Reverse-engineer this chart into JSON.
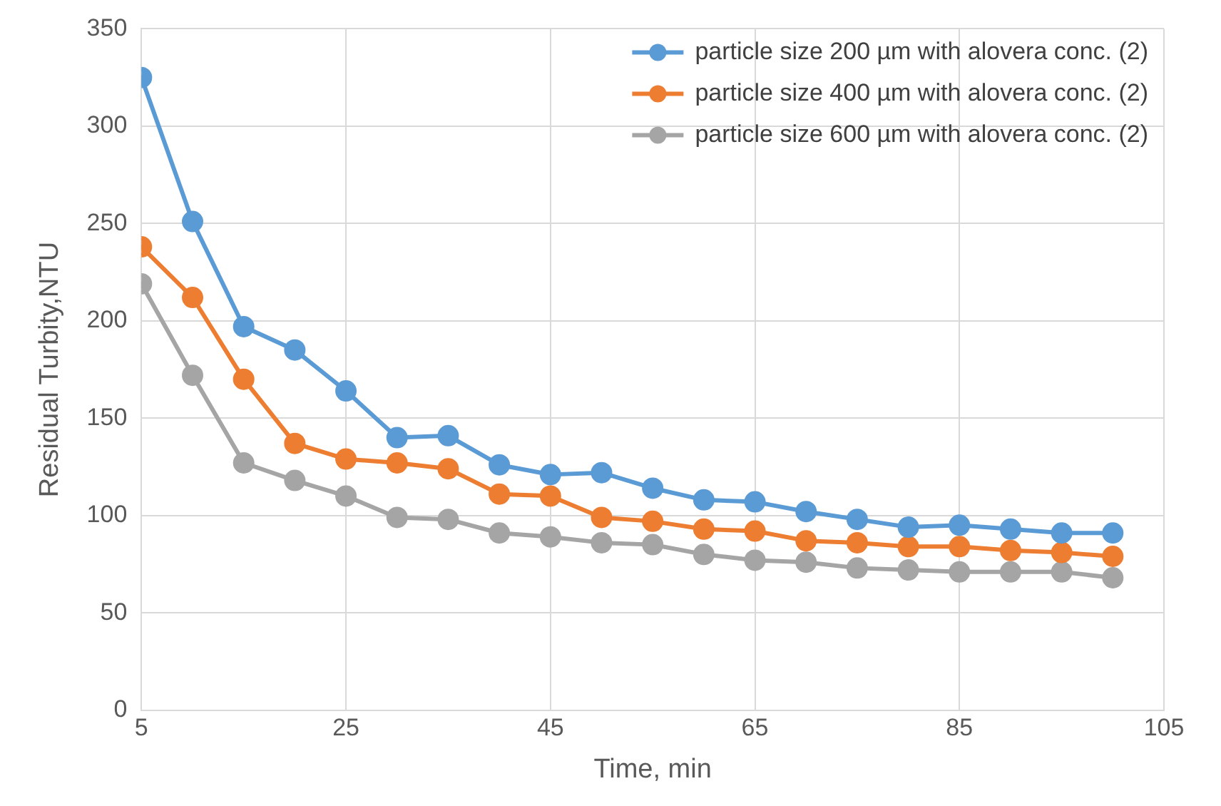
{
  "chart_data": {
    "type": "line",
    "xlabel": "Time, min",
    "ylabel": "Residual Turbity,NTU",
    "x": [
      5,
      10,
      15,
      20,
      25,
      30,
      35,
      40,
      45,
      50,
      55,
      60,
      65,
      70,
      75,
      80,
      85,
      90,
      95,
      100
    ],
    "series": [
      {
        "name": "particle size 200 µm with alovera conc. (2)",
        "color": "#5b9bd5",
        "values": [
          325,
          251,
          197,
          185,
          164,
          140,
          141,
          126,
          121,
          122,
          114,
          108,
          107,
          102,
          98,
          94,
          95,
          93,
          91,
          91
        ]
      },
      {
        "name": "particle size 400 µm with alovera conc. (2)",
        "color": "#ed7d31",
        "values": [
          238,
          212,
          170,
          137,
          129,
          127,
          124,
          111,
          110,
          99,
          97,
          93,
          92,
          87,
          86,
          84,
          84,
          82,
          81,
          79
        ]
      },
      {
        "name": "particle size 600 µm with alovera conc. (2)",
        "color": "#a5a5a5",
        "values": [
          219,
          172,
          127,
          118,
          110,
          99,
          98,
          91,
          89,
          86,
          85,
          80,
          77,
          76,
          73,
          72,
          71,
          71,
          71,
          68
        ]
      }
    ],
    "xlim": [
      5,
      105
    ],
    "xticks": [
      5,
      25,
      45,
      65,
      85,
      105
    ],
    "ylim": [
      0,
      350
    ],
    "yticks": [
      0,
      50,
      100,
      150,
      200,
      250,
      300,
      350
    ],
    "grid": true,
    "legend": "top right",
    "marker": "circle",
    "line_style": "solid"
  }
}
